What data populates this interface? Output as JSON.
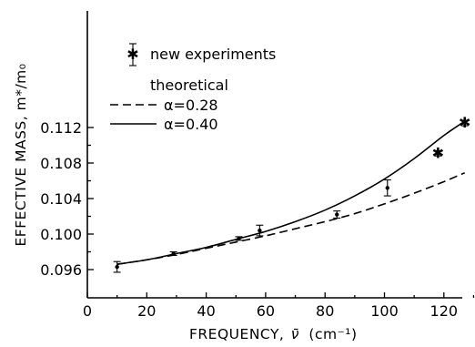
{
  "chart_data": {
    "type": "scatter",
    "xlabel": "FREQUENCY,",
    "xlabel_symbol": "ν̄",
    "xlabel_unit": "(cm⁻¹)",
    "ylabel": "EFFECTIVE MASS, m*/m₀",
    "xlim": [
      0,
      130
    ],
    "ylim": [
      0.0948,
      0.1135
    ],
    "x_ticks": [
      0,
      20,
      40,
      60,
      80,
      100,
      120
    ],
    "x_tick_labels": [
      "0",
      "20",
      "40",
      "60",
      "80",
      "100",
      "120"
    ],
    "y_ticks": [
      0.096,
      0.1,
      0.104,
      0.108,
      0.112
    ],
    "y_tick_labels": [
      "0.096",
      "0.100",
      "0.104",
      "0.108",
      "0.112"
    ],
    "grid": false,
    "legend": {
      "placement": "top-left",
      "experiment_label": "new experiments",
      "theory_header": "theoretical",
      "dashed_label": "α=0.28",
      "solid_label": "α=0.40"
    },
    "series": [
      {
        "name": "new experiments",
        "kind": "points-with-error-bars",
        "points": [
          {
            "x": 10,
            "y": 0.0963,
            "err": 0.0006,
            "marker": "dot"
          },
          {
            "x": 29,
            "y": 0.0978,
            "err": 0.0002,
            "marker": "dot"
          },
          {
            "x": 51,
            "y": 0.0995,
            "err": 0.0002,
            "marker": "dot"
          },
          {
            "x": 58,
            "y": 0.1004,
            "err": 0.0006,
            "marker": "dot"
          },
          {
            "x": 84,
            "y": 0.1022,
            "err": 0.0004,
            "marker": "dot"
          },
          {
            "x": 101,
            "y": 0.1052,
            "err": 0.0009,
            "marker": "dot"
          },
          {
            "x": 118,
            "y": 0.1091,
            "err": 0.0003,
            "marker": "x"
          },
          {
            "x": 127,
            "y": 0.1125,
            "err": 0.0003,
            "marker": "x"
          }
        ]
      },
      {
        "name": "α=0.28",
        "kind": "dashed-line",
        "x": [
          10,
          20,
          30,
          40,
          50,
          60,
          70,
          80,
          90,
          100,
          110,
          120,
          127
        ],
        "y": [
          0.0966,
          0.0971,
          0.0977,
          0.0984,
          0.0991,
          0.0998,
          0.1006,
          0.1014,
          0.1023,
          0.1034,
          0.1046,
          0.1059,
          0.1069
        ]
      },
      {
        "name": "α=0.40",
        "kind": "solid-line",
        "x": [
          10,
          20,
          30,
          40,
          50,
          60,
          70,
          80,
          90,
          100,
          110,
          120,
          127
        ],
        "y": [
          0.0966,
          0.0971,
          0.0978,
          0.0985,
          0.0994,
          0.1003,
          0.1014,
          0.1027,
          0.1043,
          0.1062,
          0.1085,
          0.1111,
          0.1127
        ]
      }
    ]
  }
}
